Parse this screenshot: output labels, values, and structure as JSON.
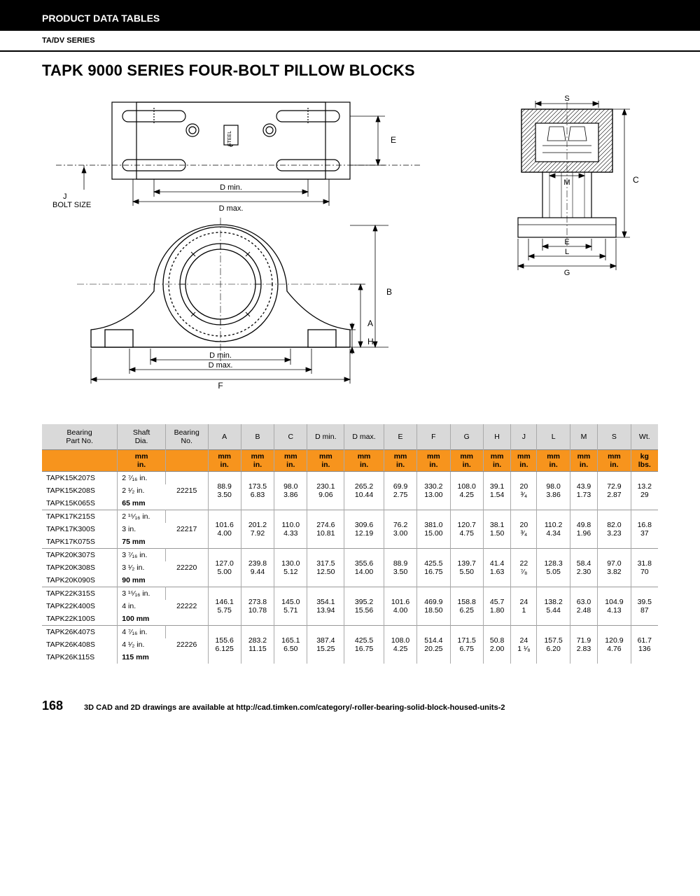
{
  "header": {
    "section": "PRODUCT DATA TABLES",
    "series": "TA/DV SERIES"
  },
  "title": "TAPK 9000 SERIES FOUR-BOLT PILLOW BLOCKS",
  "diagram_labels": {
    "bolt_size": "J\nBOLT SIZE",
    "dmin": "D min.",
    "dmax": "D max.",
    "steel": "STEEL",
    "E": "E",
    "B": "B",
    "A": "A",
    "H": "H",
    "F": "F",
    "S": "S",
    "M": "M",
    "C": "C",
    "L": "L",
    "G": "G"
  },
  "table": {
    "columns_row1": [
      "Bearing\nPart No.",
      "Shaft\nDia.",
      "Bearing\nNo.",
      "A",
      "B",
      "C",
      "D min.",
      "D max.",
      "E",
      "F",
      "G",
      "H",
      "J",
      "L",
      "M",
      "S",
      "Wt."
    ],
    "columns_row2_mm": [
      "",
      "mm",
      "",
      "mm",
      "mm",
      "mm",
      "mm",
      "mm",
      "mm",
      "mm",
      "mm",
      "mm",
      "mm",
      "mm",
      "mm",
      "mm",
      "kg"
    ],
    "columns_row2_in": [
      "",
      "in.",
      "",
      "in.",
      "in.",
      "in.",
      "in.",
      "in.",
      "in.",
      "in.",
      "in.",
      "in.",
      "in.",
      "in.",
      "in.",
      "in.",
      "lbs."
    ],
    "groups": [
      {
        "parts": [
          "TAPK15K207S",
          "TAPK15K208S",
          "TAPK15K065S"
        ],
        "shaft": [
          "2 ⁷⁄₁₆ in.",
          "2 ¹⁄₂ in.",
          "65 mm"
        ],
        "bearing_no": "22215",
        "mm": [
          "88.9",
          "173.5",
          "98.0",
          "230.1",
          "265.2",
          "69.9",
          "330.2",
          "108.0",
          "39.1",
          "20",
          "98.0",
          "43.9",
          "72.9",
          "13.2"
        ],
        "in": [
          "3.50",
          "6.83",
          "3.86",
          "9.06",
          "10.44",
          "2.75",
          "13.00",
          "4.25",
          "1.54",
          "³⁄₄",
          "3.86",
          "1.73",
          "2.87",
          "29"
        ]
      },
      {
        "parts": [
          "TAPK17K215S",
          "TAPK17K300S",
          "TAPK17K075S"
        ],
        "shaft": [
          "2 ¹⁵⁄₁₆ in.",
          "3 in.",
          "75 mm"
        ],
        "bearing_no": "22217",
        "mm": [
          "101.6",
          "201.2",
          "110.0",
          "274.6",
          "309.6",
          "76.2",
          "381.0",
          "120.7",
          "38.1",
          "20",
          "110.2",
          "49.8",
          "82.0",
          "16.8"
        ],
        "in": [
          "4.00",
          "7.92",
          "4.33",
          "10.81",
          "12.19",
          "3.00",
          "15.00",
          "4.75",
          "1.50",
          "³⁄₄",
          "4.34",
          "1.96",
          "3.23",
          "37"
        ]
      },
      {
        "parts": [
          "TAPK20K307S",
          "TAPK20K308S",
          "TAPK20K090S"
        ],
        "shaft": [
          "3 ⁷⁄₁₆ in.",
          "3 ¹⁄₂ in.",
          "90 mm"
        ],
        "bearing_no": "22220",
        "mm": [
          "127.0",
          "239.8",
          "130.0",
          "317.5",
          "355.6",
          "88.9",
          "425.5",
          "139.7",
          "41.4",
          "22",
          "128.3",
          "58.4",
          "97.0",
          "31.8"
        ],
        "in": [
          "5.00",
          "9.44",
          "5.12",
          "12.50",
          "14.00",
          "3.50",
          "16.75",
          "5.50",
          "1.63",
          "⁷⁄₈",
          "5.05",
          "2.30",
          "3.82",
          "70"
        ]
      },
      {
        "parts": [
          "TAPK22K315S",
          "TAPK22K400S",
          "TAPK22K100S"
        ],
        "shaft": [
          "3 ¹⁵⁄₁₆ in.",
          "4 in.",
          "100 mm"
        ],
        "bearing_no": "22222",
        "mm": [
          "146.1",
          "273.8",
          "145.0",
          "354.1",
          "395.2",
          "101.6",
          "469.9",
          "158.8",
          "45.7",
          "24",
          "138.2",
          "63.0",
          "104.9",
          "39.5"
        ],
        "in": [
          "5.75",
          "10.78",
          "5.71",
          "13.94",
          "15.56",
          "4.00",
          "18.50",
          "6.25",
          "1.80",
          "1",
          "5.44",
          "2.48",
          "4.13",
          "87"
        ]
      },
      {
        "parts": [
          "TAPK26K407S",
          "TAPK26K408S",
          "TAPK26K115S"
        ],
        "shaft": [
          "4 ⁷⁄₁₆ in.",
          "4 ¹⁄₂ in.",
          "115 mm"
        ],
        "bearing_no": "22226",
        "mm": [
          "155.6",
          "283.2",
          "165.1",
          "387.4",
          "425.5",
          "108.0",
          "514.4",
          "171.5",
          "50.8",
          "24",
          "157.5",
          "71.9",
          "120.9",
          "61.7"
        ],
        "in": [
          "6.125",
          "11.15",
          "6.50",
          "15.25",
          "16.75",
          "4.25",
          "20.25",
          "6.75",
          "2.00",
          "1 ¹⁄₈",
          "6.20",
          "2.83",
          "4.76",
          "136"
        ]
      }
    ]
  },
  "footer": {
    "page": "168",
    "note": "3D CAD and 2D drawings are available at http://cad.timken.com/category/-roller-bearing-solid-block-housed-units-2"
  }
}
